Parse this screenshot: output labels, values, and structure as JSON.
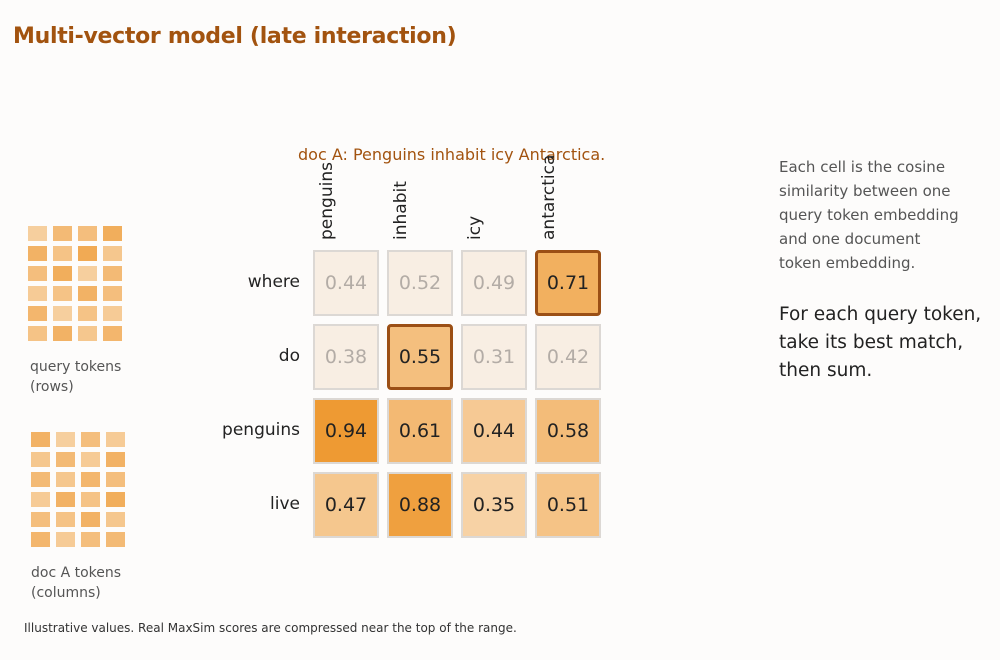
{
  "title": "Multi-vector model (late interaction)",
  "doc_title": "doc A: Penguins inhabit icy Antarctica.",
  "legend": {
    "query_caption": [
      "query tokens",
      "(rows)"
    ],
    "doc_caption": [
      "doc A tokens",
      "(columns)"
    ]
  },
  "columns": [
    "penguins",
    "inhabit",
    "icy",
    "antarctica"
  ],
  "rows": [
    "where",
    "do",
    "penguins",
    "live"
  ],
  "chart_data": {
    "type": "heatmap",
    "title": "doc A: Penguins inhabit icy Antarctica.",
    "x": [
      "penguins",
      "inhabit",
      "icy",
      "antarctica"
    ],
    "y": [
      "where",
      "do",
      "penguins",
      "live"
    ],
    "values": [
      [
        0.44,
        0.52,
        0.49,
        0.71
      ],
      [
        0.38,
        0.55,
        0.31,
        0.42
      ],
      [
        0.94,
        0.61,
        0.44,
        0.58
      ],
      [
        0.47,
        0.88,
        0.35,
        0.51
      ]
    ],
    "labels": [
      [
        "0.44",
        "0.52",
        "0.49",
        "0.71"
      ],
      [
        "0.38",
        "0.55",
        "0.31",
        "0.42"
      ],
      [
        "0.94",
        "0.61",
        "0.44",
        "0.58"
      ],
      [
        "0.47",
        "0.88",
        "0.35",
        "0.51"
      ]
    ],
    "highlighted_best": [
      [
        0,
        3
      ],
      [
        1,
        1
      ]
    ],
    "dimmed_rows": [
      0,
      1
    ]
  },
  "sidebar": {
    "note": [
      "Each cell is the cosine",
      "similarity between one",
      "query token embedding",
      "and one document",
      "token embedding."
    ],
    "instruction": [
      "For each query token,",
      "take its best match,",
      "then sum."
    ]
  },
  "footnote": "Illustrative values. Real MaxSim scores are compressed near the top of the range.",
  "colors": {
    "accent": "#a2530f",
    "cell_high": "#ee9a33",
    "cell_low": "#fbebd8",
    "best_border": "#9b4f15"
  },
  "icon_grids": {
    "query": [
      [
        0.35,
        0.6,
        0.55,
        0.75
      ],
      [
        0.7,
        0.5,
        0.8,
        0.45
      ],
      [
        0.55,
        0.75,
        0.35,
        0.6
      ],
      [
        0.4,
        0.5,
        0.7,
        0.55
      ],
      [
        0.65,
        0.35,
        0.5,
        0.4
      ],
      [
        0.5,
        0.7,
        0.45,
        0.65
      ]
    ],
    "doc": [
      [
        0.7,
        0.35,
        0.55,
        0.4
      ],
      [
        0.45,
        0.6,
        0.4,
        0.7
      ],
      [
        0.6,
        0.45,
        0.65,
        0.55
      ],
      [
        0.4,
        0.7,
        0.5,
        0.75
      ],
      [
        0.55,
        0.5,
        0.7,
        0.45
      ],
      [
        0.65,
        0.4,
        0.55,
        0.6
      ]
    ]
  }
}
